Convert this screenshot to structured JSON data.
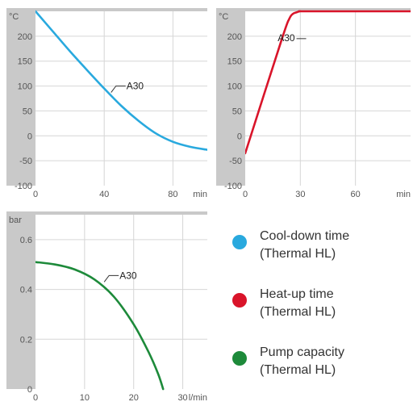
{
  "chart_data": [
    {
      "id": "cooldown",
      "type": "line",
      "xlabel": "min",
      "ylabel": "°C",
      "xlim": [
        0,
        100
      ],
      "ylim": [
        -100,
        250
      ],
      "xticks": [
        0,
        40,
        80
      ],
      "yticks": [
        -100,
        -50,
        0,
        50,
        100,
        150,
        200
      ],
      "grid": true,
      "color": "#29a9de",
      "annotation": {
        "text": "A30",
        "x": 44,
        "y": 87
      },
      "series": [
        {
          "x": [
            0,
            10,
            20,
            30,
            40,
            50,
            60,
            70,
            80,
            90,
            100
          ],
          "y": [
            250,
            210,
            170,
            132,
            95,
            60,
            30,
            5,
            -12,
            -22,
            -28
          ]
        }
      ]
    },
    {
      "id": "heatup",
      "type": "line",
      "xlabel": "min",
      "ylabel": "°C",
      "xlim": [
        0,
        90
      ],
      "ylim": [
        -100,
        250
      ],
      "xticks": [
        0,
        30,
        60
      ],
      "yticks": [
        -100,
        -50,
        0,
        50,
        100,
        150,
        200
      ],
      "grid": true,
      "color": "#d9142a",
      "annotation": {
        "text": "A30",
        "x": 20,
        "y": 200
      },
      "series": [
        {
          "x": [
            0,
            20,
            24,
            26,
            28,
            30,
            35,
            90
          ],
          "y": [
            -35,
            195,
            235,
            245,
            248,
            250,
            250,
            250
          ]
        }
      ]
    },
    {
      "id": "pump",
      "type": "line",
      "xlabel": "l/min",
      "ylabel": "bar",
      "xlim": [
        0,
        35
      ],
      "ylim": [
        0,
        0.7
      ],
      "xticks": [
        0,
        10,
        20,
        30
      ],
      "yticks": [
        0,
        0.2,
        0.4,
        0.6
      ],
      "grid": true,
      "color": "#1d8a3a",
      "annotation": {
        "text": "A30",
        "x": 14,
        "y": 0.43
      },
      "series": [
        {
          "x": [
            0,
            4,
            8,
            12,
            16,
            20,
            23,
            25,
            26
          ],
          "y": [
            0.51,
            0.5,
            0.48,
            0.44,
            0.37,
            0.26,
            0.15,
            0.06,
            0
          ]
        }
      ]
    }
  ],
  "legend": [
    {
      "line1": "Cool-down time",
      "line2": "(Thermal HL)",
      "color": "#29a9de"
    },
    {
      "line1": "Heat-up time",
      "line2": "(Thermal HL)",
      "color": "#d9142a"
    },
    {
      "line1": "Pump capacity",
      "line2": "(Thermal HL)",
      "color": "#1d8a3a"
    }
  ]
}
